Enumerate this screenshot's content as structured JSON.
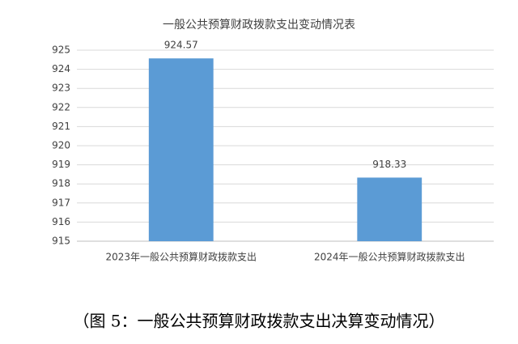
{
  "chart_data": {
    "type": "bar",
    "title": "一般公共预算财政拨款支出变动情况表",
    "categories": [
      "2023年一般公共预算财政拨款支出",
      "2024年一般公共预算财政拨款支出"
    ],
    "values": [
      924.57,
      918.33
    ],
    "color": "#5b9bd5",
    "ylim": [
      915,
      925
    ],
    "yticks": [
      915,
      916,
      917,
      918,
      919,
      920,
      921,
      922,
      923,
      924,
      925
    ],
    "grid": true
  },
  "caption": "（图 5：一般公共预算财政拨款支出决算变动情况）"
}
